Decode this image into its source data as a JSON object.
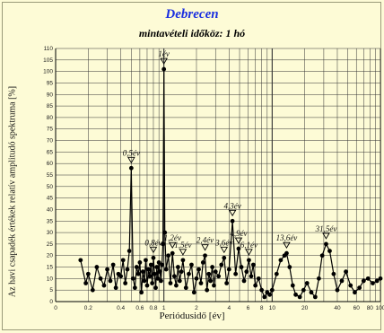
{
  "chart_data": {
    "type": "line",
    "title": "Debrecen",
    "subtitle": "mintavételi időköz: 1 hó",
    "xlabel": "Periódusidő [év]",
    "ylabel": "Az havi csapadék értékek relatív amplitudó spektruma [%]",
    "xscale": "log",
    "xlim": [
      0.1,
      100
    ],
    "ylim": [
      0,
      110
    ],
    "grid": true,
    "x_ticks": [
      "0",
      "0.2",
      "0.4",
      "0.6",
      "0.8",
      "1",
      "2",
      "4",
      "6",
      "8",
      "10",
      "20",
      "40",
      "60",
      "80",
      "100"
    ],
    "y_ticks": [
      "0",
      "5",
      "10",
      "15",
      "20",
      "25",
      "30",
      "35",
      "40",
      "45",
      "50",
      "55",
      "60",
      "65",
      "70",
      "75",
      "80",
      "85",
      "90",
      "95",
      "100",
      "105",
      "110"
    ],
    "peaks": [
      {
        "label": "1év",
        "x": 1.0,
        "y": 101
      },
      {
        "label": "0,5év",
        "x": 0.5,
        "y": 58
      },
      {
        "label": "0,8év",
        "x": 0.8,
        "y": 19
      },
      {
        "label": "1,2év",
        "x": 1.2,
        "y": 21
      },
      {
        "label": "1,5év",
        "x": 1.5,
        "y": 18
      },
      {
        "label": "2,4év",
        "x": 2.4,
        "y": 20
      },
      {
        "label": "3,6év",
        "x": 3.6,
        "y": 19
      },
      {
        "label": "4,3év",
        "x": 4.3,
        "y": 35
      },
      {
        "label": "4,9év",
        "x": 4.9,
        "y": 23
      },
      {
        "label": "6,1év",
        "x": 6.1,
        "y": 18
      },
      {
        "label": "13,6év",
        "x": 13.6,
        "y": 21
      },
      {
        "label": "31,5év",
        "x": 31.5,
        "y": 25
      }
    ],
    "series": [
      {
        "x": [
          0.17,
          0.19,
          0.2,
          0.22,
          0.24,
          0.26,
          0.28,
          0.3,
          0.32,
          0.34,
          0.36,
          0.38,
          0.4,
          0.42,
          0.44,
          0.46,
          0.48,
          0.5,
          0.52,
          0.54,
          0.56,
          0.58,
          0.6,
          0.62,
          0.64,
          0.66,
          0.68,
          0.7,
          0.72,
          0.74,
          0.76,
          0.78,
          0.8,
          0.82,
          0.84,
          0.86,
          0.88,
          0.9,
          0.92,
          0.94,
          0.96,
          0.98,
          1.0,
          1.02,
          1.05,
          1.1,
          1.15,
          1.2,
          1.25,
          1.3,
          1.35,
          1.4,
          1.45,
          1.5,
          1.6,
          1.7,
          1.8,
          1.9,
          2.0,
          2.1,
          2.2,
          2.3,
          2.4,
          2.5,
          2.6,
          2.7,
          2.8,
          2.9,
          3.0,
          3.2,
          3.4,
          3.6,
          3.8,
          4.0,
          4.3,
          4.6,
          4.9,
          5.2,
          5.5,
          5.8,
          6.1,
          6.4,
          6.7,
          7.0,
          7.5,
          8.0,
          8.5,
          9.0,
          9.5,
          10.0,
          11.0,
          12.0,
          13.0,
          13.6,
          14.5,
          15.5,
          16.5,
          18.0,
          19.5,
          21.0,
          23.0,
          25.0,
          27.0,
          29.0,
          31.5,
          34.0,
          37.0,
          40.0,
          44.0,
          48.0,
          53.0,
          58.0,
          64.0,
          70.0,
          77.0,
          85.0,
          93.0,
          100.0
        ],
        "y": [
          18,
          8,
          12,
          5,
          15,
          10,
          7,
          14,
          9,
          16,
          6,
          12,
          11,
          18,
          8,
          14,
          22,
          58,
          10,
          6,
          15,
          12,
          17,
          4,
          13,
          9,
          18,
          7,
          14,
          11,
          16,
          8,
          19,
          12,
          6,
          15,
          10,
          17,
          13,
          9,
          16,
          25,
          101,
          30,
          14,
          20,
          8,
          21,
          11,
          7,
          15,
          9,
          13,
          18,
          6,
          12,
          16,
          4,
          10,
          14,
          8,
          17,
          20,
          5,
          12,
          9,
          15,
          7,
          13,
          11,
          16,
          19,
          8,
          14,
          35,
          12,
          23,
          15,
          9,
          13,
          18,
          11,
          16,
          7,
          10,
          5,
          2,
          4,
          3,
          5,
          12,
          18,
          20,
          21,
          15,
          7,
          3,
          2,
          5,
          8,
          4,
          2,
          10,
          20,
          25,
          22,
          12,
          5,
          9,
          13,
          7,
          4,
          6,
          9,
          10,
          8,
          9,
          10
        ]
      }
    ]
  }
}
